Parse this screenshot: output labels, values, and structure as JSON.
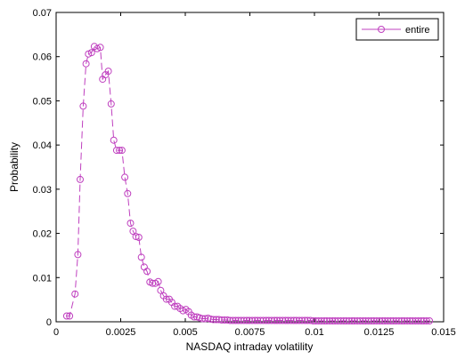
{
  "chart_data": {
    "type": "line",
    "xlabel": "NASDAQ intraday volatility",
    "ylabel": "Probability",
    "xlim": [
      0,
      0.015
    ],
    "ylim": [
      0,
      0.07
    ],
    "x_ticks": [
      0,
      0.0025,
      0.005,
      0.0075,
      0.01,
      0.0125,
      0.015
    ],
    "x_tick_labels": [
      "0",
      "0.0025",
      "0.005",
      "0.0075",
      "0.01",
      "0.0125",
      "0.015"
    ],
    "y_ticks": [
      0,
      0.01,
      0.02,
      0.03,
      0.04,
      0.05,
      0.06,
      0.07
    ],
    "y_tick_labels": [
      "0",
      "0.01",
      "0.02",
      "0.03",
      "0.04",
      "0.05",
      "0.06",
      "0.07"
    ],
    "grid": false,
    "legend_position": "top-right",
    "series": [
      {
        "name": "entire",
        "color": "#bf40bf",
        "line_style": "dashed",
        "marker": "circle",
        "x": [
          0.00041,
          0.00052,
          0.00073,
          0.00084,
          0.00093,
          0.00105,
          0.00116,
          0.00125,
          0.00137,
          0.00148,
          0.00159,
          0.00171,
          0.0018,
          0.00191,
          0.00202,
          0.00213,
          0.00223,
          0.00234,
          0.00245,
          0.00255,
          0.00266,
          0.00277,
          0.00288,
          0.00298,
          0.00309,
          0.0032,
          0.0033,
          0.00341,
          0.00352,
          0.00363,
          0.00373,
          0.00384,
          0.00395,
          0.00405,
          0.00416,
          0.00427,
          0.00438,
          0.00448,
          0.00459,
          0.0047,
          0.0048,
          0.00491,
          0.00502,
          0.00513,
          0.00523,
          0.00534,
          0.00545,
          0.00555,
          0.00566,
          0.00577,
          0.00588,
          0.00598,
          0.00609,
          0.0062,
          0.0063,
          0.00641,
          0.00652,
          0.00663,
          0.00673,
          0.00684,
          0.00695,
          0.00705,
          0.00716,
          0.00727,
          0.00738,
          0.00748,
          0.00759,
          0.0077,
          0.0078,
          0.00791,
          0.00802,
          0.00813,
          0.00823,
          0.00834,
          0.00845,
          0.00855,
          0.00866,
          0.00877,
          0.00888,
          0.00898,
          0.00909,
          0.0092,
          0.0093,
          0.00941,
          0.00952,
          0.00963,
          0.00973,
          0.00984,
          0.00995,
          0.01005,
          0.01016,
          0.01027,
          0.01038,
          0.01048,
          0.01059,
          0.0107,
          0.0108,
          0.01091,
          0.01102,
          0.01113,
          0.01123,
          0.01134,
          0.01145,
          0.01155,
          0.01166,
          0.01177,
          0.01188,
          0.01198,
          0.01209,
          0.0122,
          0.0123,
          0.01241,
          0.01252,
          0.01263,
          0.01273,
          0.01284,
          0.01295,
          0.01305,
          0.01316,
          0.01327,
          0.01338,
          0.01348,
          0.01359,
          0.0137,
          0.0138,
          0.01391,
          0.01402,
          0.01413,
          0.01423,
          0.01434,
          0.01445
        ],
        "y": [
          0.0013,
          0.0013,
          0.0063,
          0.0152,
          0.0322,
          0.0488,
          0.0584,
          0.0606,
          0.0609,
          0.0623,
          0.0618,
          0.0621,
          0.0549,
          0.0559,
          0.0567,
          0.0493,
          0.0411,
          0.0388,
          0.0388,
          0.0388,
          0.0327,
          0.029,
          0.0223,
          0.0205,
          0.0193,
          0.0191,
          0.0146,
          0.0124,
          0.0114,
          0.009,
          0.0087,
          0.0087,
          0.0091,
          0.0071,
          0.0059,
          0.0051,
          0.0051,
          0.0044,
          0.0035,
          0.0035,
          0.003,
          0.0025,
          0.0028,
          0.0023,
          0.0015,
          0.0011,
          0.0011,
          0.0009,
          0.0007,
          0.0007,
          0.0008,
          0.0006,
          0.0005,
          0.0005,
          0.0005,
          0.0004,
          0.0004,
          0.0004,
          0.0003,
          0.0003,
          0.0003,
          0.0003,
          0.0003,
          0.0003,
          0.0003,
          0.0003,
          0.0003,
          0.0003,
          0.0003,
          0.0003,
          0.0003,
          0.0003,
          0.0003,
          0.0003,
          0.0003,
          0.0003,
          0.0003,
          0.0003,
          0.0003,
          0.0003,
          0.0003,
          0.0003,
          0.0003,
          0.0003,
          0.0003,
          0.0003,
          0.0003,
          0.0003,
          0.0002,
          0.0002,
          0.0002,
          0.0002,
          0.0002,
          0.0002,
          0.0002,
          0.0002,
          0.0002,
          0.0002,
          0.0002,
          0.0002,
          0.0002,
          0.0002,
          0.0002,
          0.0002,
          0.0002,
          0.0002,
          0.0002,
          0.0002,
          0.0002,
          0.0002,
          0.0002,
          0.0002,
          0.0002,
          0.0002,
          0.0002,
          0.0002,
          0.0002,
          0.0002,
          0.0002,
          0.0002,
          0.0002,
          0.0002,
          0.0002,
          0.0002,
          0.0002,
          0.0002,
          0.0002,
          0.0002,
          0.0002,
          0.0002,
          0.0002
        ]
      }
    ]
  }
}
